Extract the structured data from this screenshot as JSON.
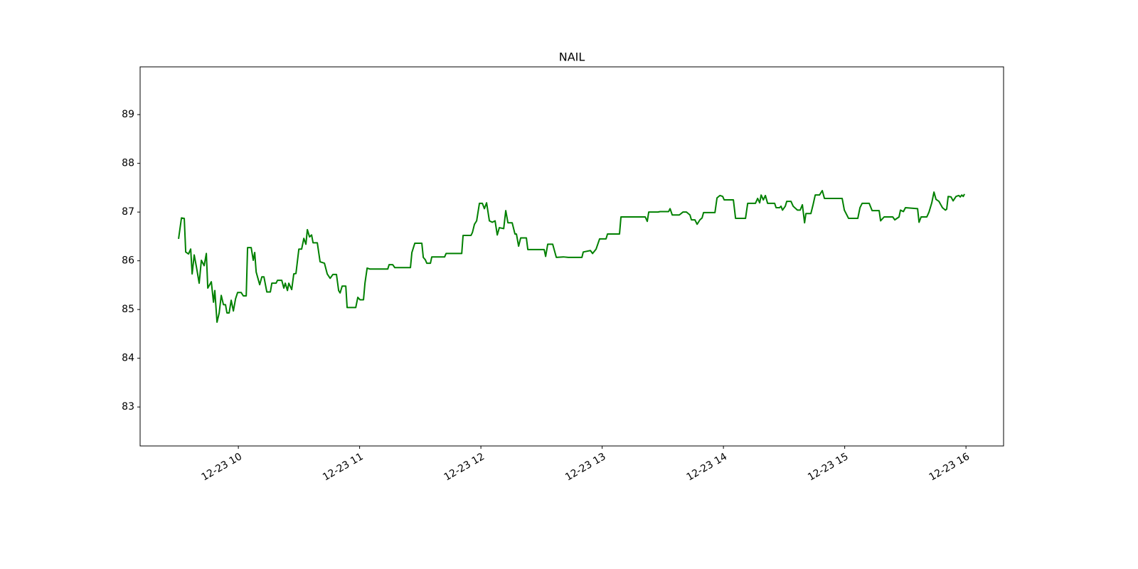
{
  "chart_data": {
    "type": "line",
    "title": "NAIL",
    "color": "green",
    "xlim": [
      9.19,
      16.31
    ],
    "xticks": [
      {
        "value": 10,
        "label": "12-23 10"
      },
      {
        "value": 11,
        "label": "12-23 11"
      },
      {
        "value": 12,
        "label": "12-23 12"
      },
      {
        "value": 13,
        "label": "12-23 13"
      },
      {
        "value": 14,
        "label": "12-23 14"
      },
      {
        "value": 15,
        "label": "12-23 15"
      },
      {
        "value": 16,
        "label": "12-23 16"
      }
    ],
    "ylim": [
      82.2,
      89.98
    ],
    "yticks": [
      83,
      84,
      85,
      86,
      87,
      88,
      89
    ],
    "x": [
      9.507,
      9.531,
      9.554,
      9.566,
      9.589,
      9.607,
      9.619,
      9.636,
      9.654,
      9.677,
      9.695,
      9.718,
      9.736,
      9.748,
      9.777,
      9.795,
      9.806,
      9.824,
      9.842,
      9.859,
      9.877,
      9.894,
      9.906,
      9.924,
      9.941,
      9.959,
      9.977,
      9.994,
      10.023,
      10.041,
      10.065,
      10.076,
      10.106,
      10.123,
      10.135,
      10.147,
      10.176,
      10.194,
      10.211,
      10.235,
      10.264,
      10.276,
      10.311,
      10.323,
      10.358,
      10.375,
      10.387,
      10.405,
      10.416,
      10.44,
      10.457,
      10.475,
      10.499,
      10.522,
      10.54,
      10.557,
      10.569,
      10.587,
      10.604,
      10.616,
      10.651,
      10.674,
      10.71,
      10.733,
      10.757,
      10.78,
      10.809,
      10.827,
      10.839,
      10.856,
      10.886,
      10.897,
      10.968,
      10.985,
      11.003,
      11.032,
      11.044,
      11.062,
      11.085,
      11.232,
      11.243,
      11.273,
      11.29,
      11.419,
      11.431,
      11.455,
      11.513,
      11.525,
      11.542,
      11.554,
      11.584,
      11.595,
      11.701,
      11.713,
      11.842,
      11.853,
      11.918,
      11.93,
      11.947,
      11.965,
      11.988,
      12.012,
      12.029,
      12.047,
      12.07,
      12.094,
      12.117,
      12.135,
      12.152,
      12.188,
      12.205,
      12.223,
      12.258,
      12.281,
      12.293,
      12.311,
      12.328,
      12.375,
      12.387,
      12.522,
      12.534,
      12.551,
      12.592,
      12.622,
      12.68,
      12.721,
      12.833,
      12.844,
      12.903,
      12.921,
      12.95,
      12.979,
      13.032,
      13.044,
      13.143,
      13.155,
      13.355,
      13.372,
      13.384,
      13.46,
      13.478,
      13.548,
      13.56,
      13.578,
      13.636,
      13.666,
      13.695,
      13.724,
      13.736,
      13.765,
      13.783,
      13.806,
      13.824,
      13.836,
      13.93,
      13.947,
      13.971,
      13.994,
      14.006,
      14.082,
      14.1,
      14.182,
      14.2,
      14.264,
      14.282,
      14.299,
      14.311,
      14.329,
      14.346,
      14.364,
      14.422,
      14.434,
      14.463,
      14.475,
      14.487,
      14.51,
      14.522,
      14.557,
      14.575,
      14.61,
      14.633,
      14.651,
      14.669,
      14.68,
      14.721,
      14.739,
      14.757,
      14.792,
      14.815,
      14.833,
      14.979,
      14.997,
      15.032,
      15.108,
      15.126,
      15.144,
      15.202,
      15.226,
      15.284,
      15.296,
      15.325,
      15.396,
      15.413,
      15.448,
      15.46,
      15.484,
      15.501,
      15.601,
      15.613,
      15.63,
      15.677,
      15.695,
      15.718,
      15.736,
      15.753,
      15.777,
      15.806,
      15.83,
      15.841,
      15.853,
      15.877,
      15.894,
      15.918,
      15.941,
      15.953,
      15.965,
      15.977,
      15.988
    ],
    "values": [
      86.45,
      86.88,
      86.87,
      86.18,
      86.14,
      86.24,
      85.73,
      86.12,
      85.88,
      85.54,
      86.01,
      85.9,
      86.15,
      85.44,
      85.57,
      85.15,
      85.39,
      84.74,
      84.93,
      85.29,
      85.1,
      85.1,
      84.93,
      84.93,
      85.19,
      84.97,
      85.22,
      85.35,
      85.35,
      85.28,
      85.28,
      86.27,
      86.27,
      86.01,
      86.17,
      85.77,
      85.51,
      85.67,
      85.67,
      85.36,
      85.36,
      85.54,
      85.54,
      85.6,
      85.6,
      85.44,
      85.54,
      85.39,
      85.54,
      85.41,
      85.73,
      85.74,
      86.24,
      86.24,
      86.46,
      86.34,
      86.64,
      86.49,
      86.53,
      86.37,
      86.37,
      85.98,
      85.95,
      85.73,
      85.64,
      85.72,
      85.72,
      85.39,
      85.34,
      85.48,
      85.48,
      85.04,
      85.04,
      85.25,
      85.2,
      85.2,
      85.54,
      85.85,
      85.83,
      85.83,
      85.92,
      85.92,
      85.86,
      85.86,
      86.17,
      86.36,
      86.36,
      86.07,
      86.02,
      85.95,
      85.95,
      86.08,
      86.08,
      86.15,
      86.15,
      86.52,
      86.52,
      86.58,
      86.75,
      86.82,
      87.18,
      87.18,
      87.07,
      87.19,
      86.82,
      86.79,
      86.82,
      86.53,
      86.68,
      86.66,
      87.03,
      86.78,
      86.78,
      86.55,
      86.55,
      86.3,
      86.47,
      86.47,
      86.23,
      86.23,
      86.09,
      86.34,
      86.34,
      86.07,
      86.08,
      86.07,
      86.07,
      86.18,
      86.21,
      86.15,
      86.24,
      86.45,
      86.45,
      86.55,
      86.55,
      86.9,
      86.9,
      86.81,
      87.0,
      87.0,
      87.01,
      87.01,
      87.07,
      86.94,
      86.94,
      87.0,
      87.0,
      86.94,
      86.84,
      86.84,
      86.75,
      86.84,
      86.88,
      86.99,
      86.99,
      87.29,
      87.34,
      87.32,
      87.25,
      87.25,
      86.87,
      86.87,
      87.18,
      87.18,
      87.28,
      87.19,
      87.35,
      87.25,
      87.34,
      87.18,
      87.18,
      87.09,
      87.09,
      87.12,
      87.04,
      87.12,
      87.22,
      87.22,
      87.12,
      87.04,
      87.04,
      87.15,
      86.78,
      86.97,
      86.97,
      87.15,
      87.35,
      87.35,
      87.44,
      87.28,
      87.28,
      87.04,
      86.87,
      86.87,
      87.09,
      87.18,
      87.18,
      87.03,
      87.03,
      86.82,
      86.9,
      86.9,
      86.84,
      86.9,
      87.04,
      87.01,
      87.09,
      87.07,
      86.79,
      86.9,
      86.9,
      87.0,
      87.19,
      87.41,
      87.26,
      87.22,
      87.09,
      87.04,
      87.06,
      87.32,
      87.31,
      87.23,
      87.32,
      87.34,
      87.31,
      87.35,
      87.32,
      87.37
    ]
  }
}
